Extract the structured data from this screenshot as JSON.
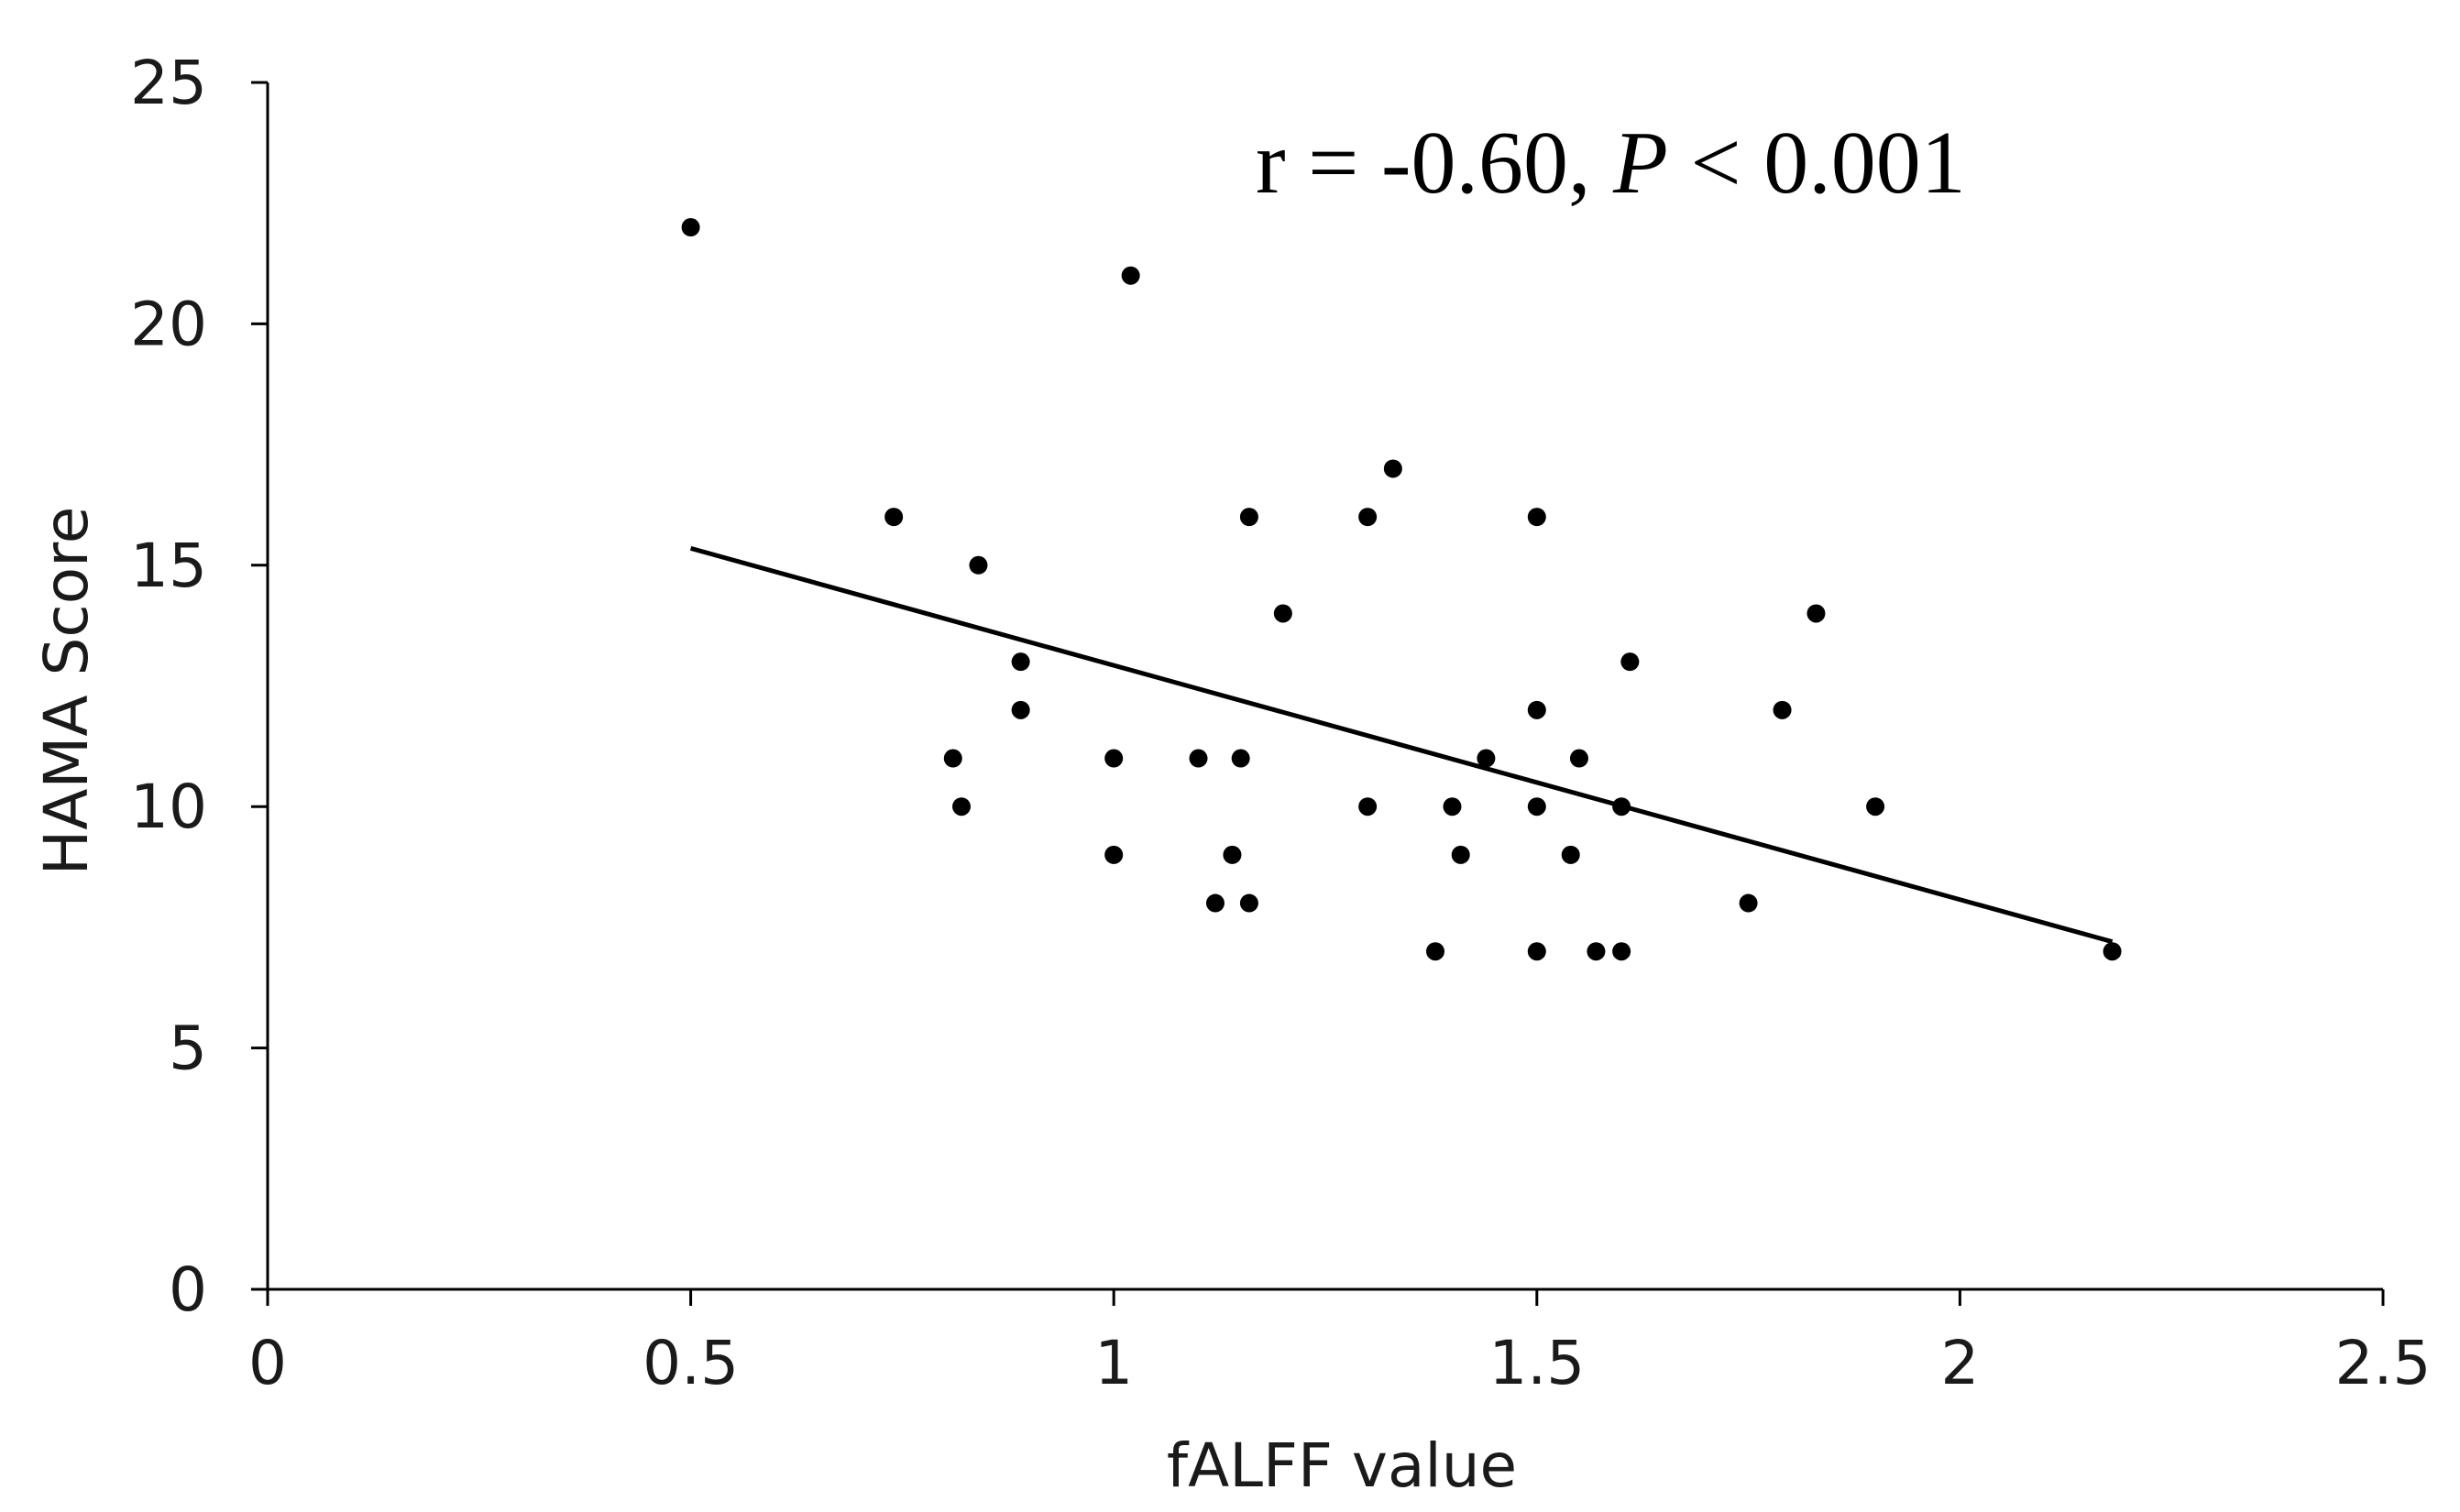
{
  "chart_data": {
    "type": "scatter",
    "title": "",
    "xlabel": "fALFF value",
    "ylabel": "HAMA Score",
    "xlim": [
      0,
      2.5
    ],
    "ylim": [
      0,
      25
    ],
    "xticks": [
      0,
      0.5,
      1,
      1.5,
      2,
      2.5
    ],
    "xtick_labels": [
      "0",
      "0.5",
      "1",
      "1.5",
      "2",
      "2.5"
    ],
    "yticks": [
      0,
      5,
      10,
      15,
      20,
      25
    ],
    "ytick_labels": [
      "0",
      "5",
      "10",
      "15",
      "20",
      "25"
    ],
    "grid": false,
    "legend": "none",
    "annotation": {
      "prefix": "r = -0.60, ",
      "p_symbol": "P",
      "suffix": " < 0.001"
    },
    "series": [
      {
        "points": [
          {
            "x": 0.5,
            "y": 22
          },
          {
            "x": 1.02,
            "y": 21
          },
          {
            "x": 1.33,
            "y": 17
          },
          {
            "x": 0.74,
            "y": 16
          },
          {
            "x": 1.16,
            "y": 16
          },
          {
            "x": 1.3,
            "y": 16
          },
          {
            "x": 1.5,
            "y": 16
          },
          {
            "x": 0.84,
            "y": 15
          },
          {
            "x": 1.2,
            "y": 14
          },
          {
            "x": 1.83,
            "y": 14
          },
          {
            "x": 0.89,
            "y": 13
          },
          {
            "x": 1.61,
            "y": 13
          },
          {
            "x": 0.89,
            "y": 12
          },
          {
            "x": 1.5,
            "y": 12
          },
          {
            "x": 1.79,
            "y": 12
          },
          {
            "x": 0.81,
            "y": 11
          },
          {
            "x": 1.0,
            "y": 11
          },
          {
            "x": 1.1,
            "y": 11
          },
          {
            "x": 1.15,
            "y": 11
          },
          {
            "x": 1.44,
            "y": 11
          },
          {
            "x": 1.55,
            "y": 11
          },
          {
            "x": 0.82,
            "y": 10
          },
          {
            "x": 1.3,
            "y": 10
          },
          {
            "x": 1.4,
            "y": 10
          },
          {
            "x": 1.5,
            "y": 10
          },
          {
            "x": 1.6,
            "y": 10
          },
          {
            "x": 1.9,
            "y": 10
          },
          {
            "x": 1.0,
            "y": 9
          },
          {
            "x": 1.14,
            "y": 9
          },
          {
            "x": 1.41,
            "y": 9
          },
          {
            "x": 1.54,
            "y": 9
          },
          {
            "x": 1.12,
            "y": 8
          },
          {
            "x": 1.16,
            "y": 8
          },
          {
            "x": 1.75,
            "y": 8
          },
          {
            "x": 1.38,
            "y": 7
          },
          {
            "x": 1.5,
            "y": 7
          },
          {
            "x": 1.57,
            "y": 7
          },
          {
            "x": 1.6,
            "y": 7
          },
          {
            "x": 2.18,
            "y": 7
          }
        ]
      }
    ],
    "trendline": {
      "x": [
        0.5,
        2.18
      ],
      "y": [
        15.35,
        7.2
      ]
    },
    "colors": {
      "points": "#000000",
      "line": "#000000",
      "axis": "#000000"
    }
  }
}
